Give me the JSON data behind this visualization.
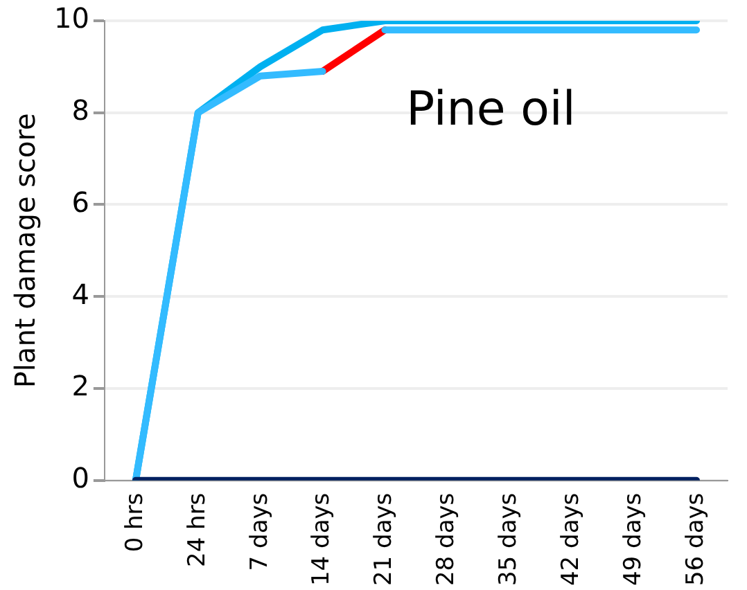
{
  "chart_data": {
    "type": "line",
    "ylabel": "Plant damage score",
    "annotations": [
      "Pine oil"
    ],
    "categories": [
      "0 hrs",
      "24 hrs",
      "7 days",
      "14 days",
      "21 days",
      "28 days",
      "35 days",
      "42 days",
      "49 days",
      "56 days"
    ],
    "series": [
      {
        "color": "#002060",
        "values": [
          0,
          0,
          0,
          0,
          0,
          0,
          0,
          0,
          0,
          0
        ]
      },
      {
        "color": "#33bbff",
        "values": [
          0,
          8,
          8.8,
          8.9,
          null,
          null,
          null,
          null,
          null,
          null
        ]
      },
      {
        "color": "#33bbff",
        "values": [
          null,
          null,
          null,
          null,
          9.8,
          9.8,
          9.8,
          9.8,
          9.8,
          9.8
        ]
      },
      {
        "color": "#ff0000",
        "values": [
          null,
          null,
          null,
          8.9,
          9.8,
          null,
          null,
          null,
          null,
          null
        ]
      },
      {
        "color": "#00b0f0",
        "values": [
          0,
          8,
          9,
          9.8,
          10,
          10,
          10,
          10,
          10,
          10
        ]
      }
    ],
    "ylim": [
      0,
      10
    ],
    "yticks": [
      0,
      2,
      4,
      6,
      8,
      10
    ],
    "grid": "y",
    "legend": false,
    "marker": "none",
    "line_style": "solid"
  }
}
